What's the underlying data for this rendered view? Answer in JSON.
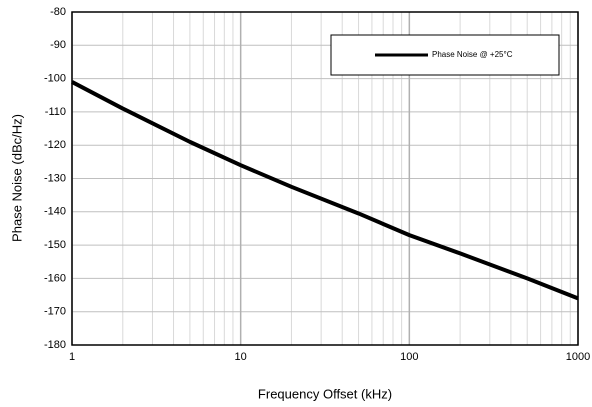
{
  "chart_data": {
    "type": "line",
    "xlabel": "Frequency Offset (kHz)",
    "ylabel": "Phase Noise (dBc/Hz)",
    "xscale": "log",
    "xlim": [
      1,
      1000
    ],
    "ylim": [
      -180,
      -80
    ],
    "xticks": [
      1,
      10,
      100,
      1000
    ],
    "xminorticks": [
      2,
      3,
      4,
      5,
      6,
      7,
      8,
      9,
      20,
      30,
      40,
      50,
      60,
      70,
      80,
      90,
      200,
      300,
      400,
      500,
      600,
      700,
      800,
      900
    ],
    "yticks": [
      -180,
      -170,
      -160,
      -150,
      -140,
      -130,
      -120,
      -110,
      -100,
      -90,
      -80
    ],
    "grid": true,
    "legend": "upper right",
    "x": [
      1,
      2,
      5,
      10,
      20,
      50,
      100,
      200,
      500,
      1000
    ],
    "series": [
      {
        "name": "Phase Noise @ +25°C",
        "color": "#000000",
        "values": [
          -101,
          -109,
          -119,
          -126,
          -132.5,
          -140.5,
          -147,
          -152.5,
          -160,
          -166
        ]
      }
    ]
  }
}
